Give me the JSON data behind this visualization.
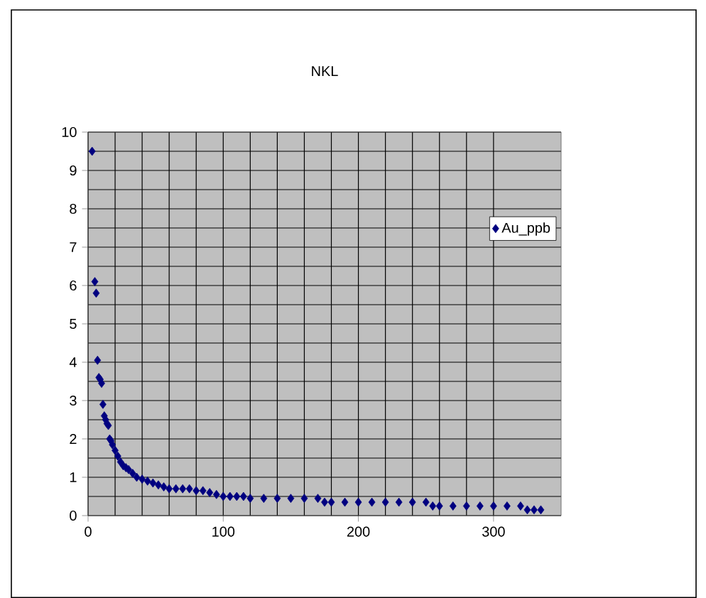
{
  "chart_data": {
    "type": "scatter",
    "title": "NKL",
    "x": [
      3,
      5,
      6,
      7,
      8,
      9,
      10,
      11,
      12,
      13,
      14,
      15,
      16,
      17,
      18,
      20,
      22,
      24,
      26,
      28,
      30,
      33,
      36,
      40,
      44,
      48,
      52,
      56,
      60,
      65,
      70,
      75,
      80,
      85,
      90,
      95,
      100,
      105,
      110,
      115,
      120,
      130,
      140,
      150,
      160,
      170,
      175,
      180,
      190,
      200,
      210,
      220,
      230,
      240,
      250,
      255,
      260,
      270,
      280,
      290,
      300,
      310,
      320,
      325,
      330,
      335
    ],
    "series": [
      {
        "name": "Au_ppb",
        "color": "#000080",
        "values": [
          9.5,
          6.1,
          5.8,
          4.05,
          3.6,
          3.55,
          3.45,
          2.9,
          2.6,
          2.5,
          2.4,
          2.35,
          2.0,
          1.95,
          1.85,
          1.7,
          1.55,
          1.4,
          1.3,
          1.25,
          1.2,
          1.1,
          1.0,
          0.95,
          0.9,
          0.85,
          0.8,
          0.75,
          0.7,
          0.7,
          0.7,
          0.7,
          0.65,
          0.65,
          0.6,
          0.55,
          0.5,
          0.5,
          0.5,
          0.5,
          0.45,
          0.45,
          0.45,
          0.45,
          0.45,
          0.45,
          0.35,
          0.35,
          0.35,
          0.35,
          0.35,
          0.35,
          0.35,
          0.35,
          0.35,
          0.25,
          0.25,
          0.25,
          0.25,
          0.25,
          0.25,
          0.25,
          0.25,
          0.15,
          0.15,
          0.15
        ]
      }
    ],
    "xlim": [
      0,
      350
    ],
    "xticks": [
      0,
      100,
      200,
      300
    ],
    "ylim": [
      0,
      10
    ],
    "yticks": [
      0,
      1,
      2,
      3,
      4,
      5,
      6,
      7,
      8,
      9,
      10
    ],
    "grid": true,
    "legend": "top right",
    "marker": "diamond"
  }
}
